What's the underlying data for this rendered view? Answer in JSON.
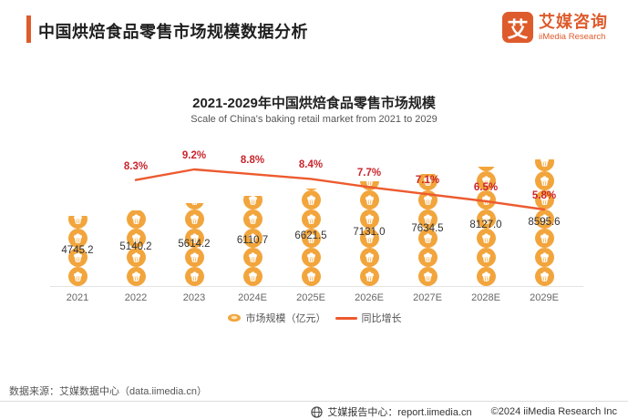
{
  "header": {
    "title": "中国烘焙食品零售市场规模数据分析",
    "logo": {
      "mark": "艾",
      "name_cn": "艾媒咨询",
      "name_en": "iiMedia Research"
    }
  },
  "chart": {
    "title": "2021-2029年中国烘焙食品零售市场规模",
    "subtitle": "Scale of China's baking retail market from 2021 to 2029",
    "legend": [
      {
        "label": "市场规模（亿元）",
        "marker": "bun-icon"
      },
      {
        "label": "同比增长",
        "marker": "line-swatch"
      }
    ]
  },
  "chart_data": {
    "type": "bar",
    "subtype": "pictograph-bar-with-line",
    "categories": [
      "2021",
      "2022",
      "2023",
      "2024E",
      "2025E",
      "2026E",
      "2027E",
      "2028E",
      "2029E"
    ],
    "series": [
      {
        "name": "市场规模（亿元）",
        "type": "bar",
        "unit": "亿元",
        "values": [
          4745.2,
          5140.2,
          5614.2,
          6110.7,
          6621.5,
          7131.0,
          7634.5,
          8127.0,
          8595.6
        ]
      },
      {
        "name": "同比增长",
        "type": "line",
        "unit": "%",
        "values": [
          null,
          8.3,
          9.2,
          8.8,
          8.4,
          7.7,
          7.1,
          6.5,
          5.8
        ]
      }
    ],
    "title": "2021-2029年中国烘焙食品零售市场规模",
    "subtitle": "Scale of China's baking retail market from 2021 to 2029",
    "xlabel": "",
    "ylabel": "",
    "grid": false,
    "legend_position": "bottom"
  },
  "source": "数据来源：艾媒数据中心（data.iimedia.cn）",
  "footer": {
    "report_center": "艾媒报告中心：report.iimedia.cn",
    "copyright": "©2024 iiMedia Research Inc"
  },
  "colors": {
    "accent": "#DE5B2C",
    "bar": "#F2A53C",
    "line": "#ED5A2F",
    "pct": "#C9252C"
  }
}
